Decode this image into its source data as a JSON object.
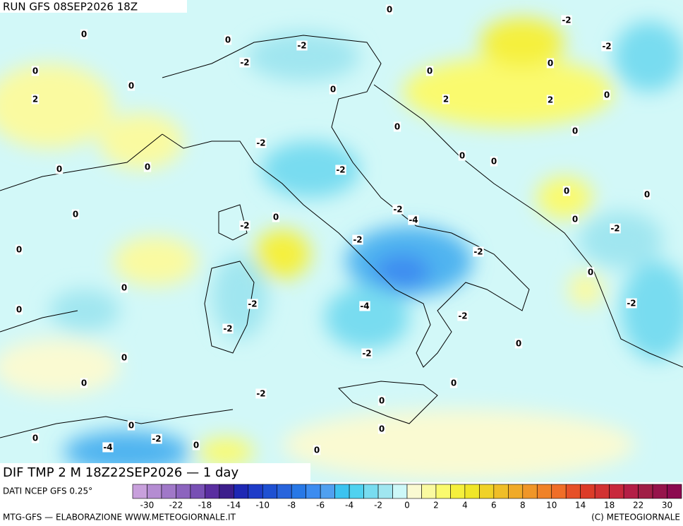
{
  "header": {
    "run": "RUN GFS 08SEP2026 18Z",
    "field": "DIF TMP 2 M 18Z22SEP2026 — 1 day"
  },
  "contour_labels": [
    0,
    -2,
    0,
    0,
    -2,
    -2,
    -2,
    0,
    0,
    0,
    0,
    0,
    0,
    2,
    2,
    2,
    0,
    0,
    -2,
    0,
    0,
    0,
    0,
    -2,
    0,
    0,
    -2,
    0,
    0,
    -4,
    0,
    -2,
    -2,
    -2,
    0,
    -2,
    0,
    0,
    -2,
    -4,
    -2,
    0,
    -2,
    -2,
    0,
    -2,
    0,
    0,
    0,
    -2,
    0,
    0,
    0,
    0,
    -2,
    -4,
    0,
    0
  ],
  "colorbar": {
    "labels": [
      -30,
      -22,
      -18,
      -14,
      -10,
      -8,
      -6,
      -4,
      -2,
      0,
      2,
      4,
      6,
      8,
      10,
      14,
      18,
      22,
      30
    ],
    "colors": [
      "#c8a0dc",
      "#b48cd2",
      "#a078c8",
      "#8c64be",
      "#7850b4",
      "#5a2ea0",
      "#3c1e8c",
      "#1e28b4",
      "#1e3cc8",
      "#1e50d2",
      "#2864dc",
      "#2878e6",
      "#3c8cf0",
      "#50a0f0",
      "#3cc3f0",
      "#50d2f0",
      "#78dcf0",
      "#a0e6f0",
      "#cdf8f8",
      "#fafad2",
      "#fafaa0",
      "#fafa6e",
      "#f5f03c",
      "#f0e628",
      "#f0d228",
      "#f0be28",
      "#f0aa28",
      "#f09628",
      "#f08228",
      "#f06e28",
      "#e65028",
      "#dc3c28",
      "#d23232",
      "#c8283c",
      "#b41e46",
      "#a01e46",
      "#96144b",
      "#8c0a50"
    ]
  },
  "footer": {
    "source": "DATI NCEP GFS 0.25°",
    "credit": "MTG-GFS — ELABORAZIONE WWW.METEOGIORNALE.IT",
    "copyright": "(C) METEOGIORNALE"
  }
}
